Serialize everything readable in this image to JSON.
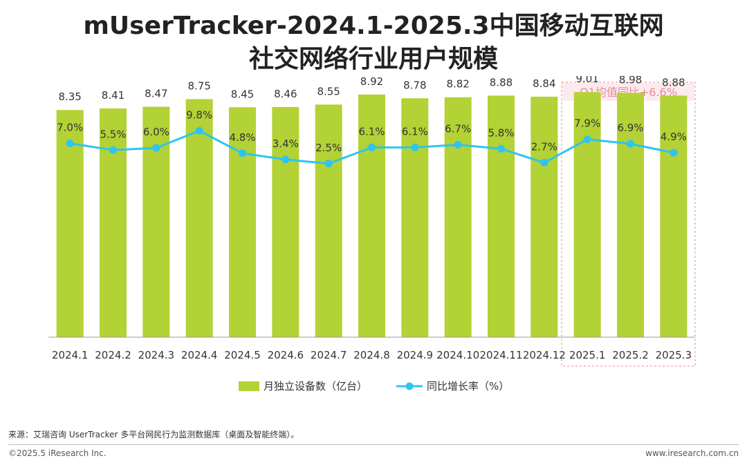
{
  "title_line1": "mUserTracker-2024.1-2025.3中国移动互联网",
  "title_line2": "社交网络行业用户规模",
  "highlight_label": "Q1均值同比+6.6%",
  "source": "来源：艾瑞咨询 UserTracker 多平台网民行为监测数据库（桌面及智能终端）。",
  "copyright": "©2025.5 iResearch Inc.",
  "website": "www.iresearch.com.cn",
  "colors": {
    "bar": "#b3d235",
    "line": "#2ec4ef",
    "highlight": "#e78a96"
  },
  "chart_data": {
    "type": "bar",
    "categories": [
      "2024.1",
      "2024.2",
      "2024.3",
      "2024.4",
      "2024.5",
      "2024.6",
      "2024.7",
      "2024.8",
      "2024.9",
      "2024.10",
      "2024.11",
      "2024.12",
      "2025.1",
      "2025.2",
      "2025.3"
    ],
    "series": [
      {
        "name": "月独立设备数（亿台）",
        "type": "bar",
        "values": [
          8.35,
          8.41,
          8.47,
          8.75,
          8.45,
          8.46,
          8.55,
          8.92,
          8.78,
          8.82,
          8.88,
          8.84,
          9.01,
          8.98,
          8.88
        ],
        "labels": [
          "8.35",
          "8.41",
          "8.47",
          "8.75",
          "8.45",
          "8.46",
          "8.55",
          "8.92",
          "8.78",
          "8.82",
          "8.88",
          "8.84",
          "9.01",
          "8.98",
          "8.88"
        ]
      },
      {
        "name": "同比增长率（%）",
        "type": "line",
        "values": [
          7.0,
          5.5,
          6.0,
          9.8,
          4.8,
          3.4,
          2.5,
          6.1,
          6.1,
          6.7,
          5.8,
          2.7,
          7.9,
          6.9,
          4.9
        ],
        "labels": [
          "7.0%",
          "5.5%",
          "6.0%",
          "9.8%",
          "4.8%",
          "3.4%",
          "2.5%",
          "6.1%",
          "6.1%",
          "6.7%",
          "5.8%",
          "2.7%",
          "7.9%",
          "6.9%",
          "4.9%"
        ]
      }
    ],
    "highlight_categories": [
      "2025.1",
      "2025.2",
      "2025.3"
    ],
    "legend_position": "bottom",
    "grid": false
  }
}
